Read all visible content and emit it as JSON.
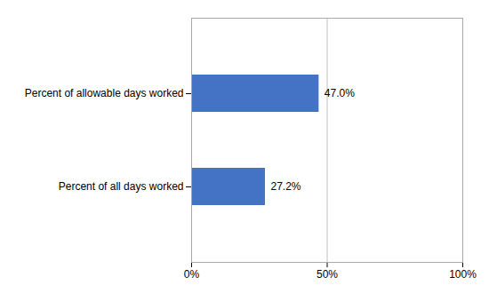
{
  "chart_data": {
    "type": "bar",
    "orientation": "horizontal",
    "categories": [
      "Percent of allowable days worked",
      "Percent of all days worked"
    ],
    "values": [
      47.0,
      27.2
    ],
    "value_labels": [
      "47.0%",
      "27.2%"
    ],
    "data_labels": true,
    "color": "#4472C4",
    "xlim": [
      0,
      100
    ],
    "xticks": [
      {
        "value": 0,
        "label": "0%"
      },
      {
        "value": 50,
        "label": "50%"
      },
      {
        "value": 100,
        "label": "100%"
      }
    ],
    "grid": true
  }
}
